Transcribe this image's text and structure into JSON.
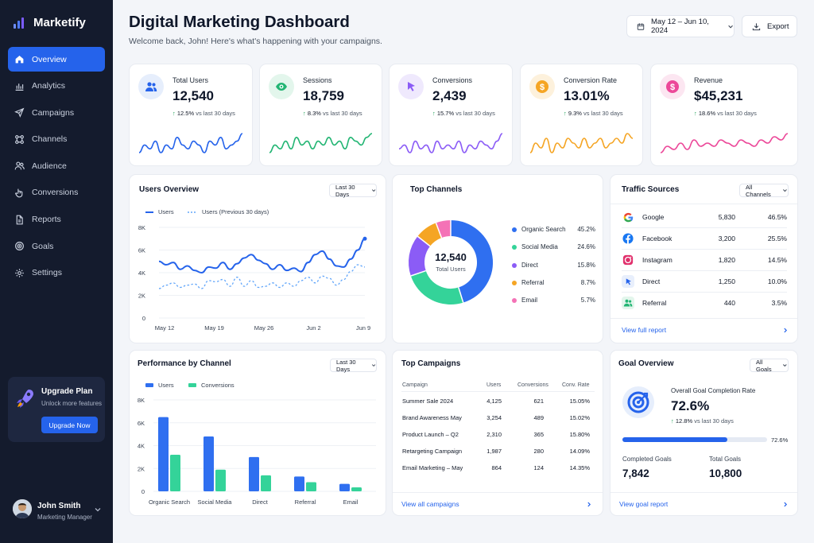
{
  "app": {
    "name": "Marketify",
    "accent": "#2563eb",
    "sidebar_bg": "#141b2d"
  },
  "sidebar": {
    "items": [
      {
        "label": "Overview",
        "icon": "home-icon",
        "active": true
      },
      {
        "label": "Analytics",
        "icon": "bar-chart-icon"
      },
      {
        "label": "Campaigns",
        "icon": "send-icon"
      },
      {
        "label": "Channels",
        "icon": "channels-icon"
      },
      {
        "label": "Audience",
        "icon": "users-icon"
      },
      {
        "label": "Conversions",
        "icon": "pointer-icon"
      },
      {
        "label": "Reports",
        "icon": "document-icon"
      },
      {
        "label": "Goals",
        "icon": "target-icon"
      },
      {
        "label": "Settings",
        "icon": "gear-icon"
      }
    ],
    "upgrade": {
      "title": "Upgrade Plan",
      "subtitle": "Unlock more features",
      "button": "Upgrade Now"
    },
    "user": {
      "name": "John Smith",
      "role": "Marketing Manager"
    }
  },
  "header": {
    "title": "Digital Marketing Dashboard",
    "subtitle": "Welcome back, John! Here's what's happening with your campaigns.",
    "date_range": "May 12 – Jun 10, 2024",
    "export_label": "Export"
  },
  "kpis": [
    {
      "label": "Total Users",
      "value": "12,540",
      "delta": "12.5%",
      "delta_suffix": "vs last 30 days",
      "icon": "users-icon",
      "color": "#2563eb",
      "bg": "#e6eefc"
    },
    {
      "label": "Sessions",
      "value": "18,759",
      "delta": "8.3%",
      "delta_suffix": "vs last 30 days",
      "icon": "eye-icon",
      "color": "#22b573",
      "bg": "#e3f6ec"
    },
    {
      "label": "Conversions",
      "value": "2,439",
      "delta": "15.7%",
      "delta_suffix": "vs last 30 days",
      "icon": "pointer-icon",
      "color": "#8b5cf6",
      "bg": "#efe9fd"
    },
    {
      "label": "Conversion Rate",
      "value": "13.01%",
      "delta": "9.3%",
      "delta_suffix": "vs last 30 days",
      "icon": "dollar-icon",
      "color": "#f5a524",
      "bg": "#fdf1dc"
    },
    {
      "label": "Revenue",
      "value": "$45,231",
      "delta": "18.6%",
      "delta_suffix": "vs last 30 days",
      "icon": "dollar-icon",
      "color": "#ec4899",
      "bg": "#fce6f1"
    }
  ],
  "users_overview": {
    "title": "Users Overview",
    "filter": "Last 30 Days",
    "legend": [
      "Users",
      "Users (Previous 30 days)"
    ]
  },
  "top_channels": {
    "title": "Top Channels",
    "center_value": "12,540",
    "center_label": "Total Users"
  },
  "traffic_sources": {
    "title": "Traffic Sources",
    "filter": "All Channels",
    "rows": [
      {
        "name": "Google",
        "users": "5,830",
        "pct": "46.5%",
        "icon": "google-icon"
      },
      {
        "name": "Facebook",
        "users": "3,200",
        "pct": "25.5%",
        "icon": "facebook-icon"
      },
      {
        "name": "Instagram",
        "users": "1,820",
        "pct": "14.5%",
        "icon": "instagram-icon"
      },
      {
        "name": "Direct",
        "users": "1,250",
        "pct": "10.0%",
        "icon": "pointer-icon"
      },
      {
        "name": "Referral",
        "users": "440",
        "pct": "3.5%",
        "icon": "users-icon"
      }
    ],
    "link": "View full report"
  },
  "performance": {
    "title": "Performance by Channel",
    "filter": "Last 30 Days",
    "legend": [
      "Users",
      "Conversions"
    ]
  },
  "top_campaigns": {
    "title": "Top Campaigns",
    "headers": [
      "Campaign",
      "Users",
      "Conversions",
      "Conv. Rate"
    ],
    "rows": [
      [
        "Summer Sale 2024",
        "4,125",
        "621",
        "15.05%"
      ],
      [
        "Brand Awareness May",
        "3,254",
        "489",
        "15.02%"
      ],
      [
        "Product Launch – Q2",
        "2,310",
        "365",
        "15.80%"
      ],
      [
        "Retargeting Campaign",
        "1,987",
        "280",
        "14.09%"
      ],
      [
        "Email Marketing – May",
        "864",
        "124",
        "14.35%"
      ]
    ],
    "link": "View all campaigns"
  },
  "goal_overview": {
    "title": "Goal Overview",
    "filter": "All Goals",
    "completion_label": "Overall Goal Completion Rate",
    "completion_value": "72.6%",
    "completion_fraction": 0.726,
    "delta": "12.8%",
    "delta_suffix": "vs last 30 days",
    "bar_label": "72.6%",
    "completed_label": "Completed Goals",
    "completed_value": "7,842",
    "total_label": "Total Goals",
    "total_value": "10,800",
    "link": "View goal report"
  },
  "chart_data": [
    {
      "type": "line",
      "title": "Users Overview",
      "x_ticks": [
        "May 12",
        "May 19",
        "May 26",
        "Jun 2",
        "Jun 9"
      ],
      "y_ticks": [
        "0",
        "2K",
        "4K",
        "6K",
        "8K"
      ],
      "ylim": [
        0,
        8000
      ],
      "series": [
        {
          "name": "Users",
          "style": "solid",
          "color": "#2563eb",
          "values": [
            5000,
            4700,
            4900,
            4300,
            4600,
            4200,
            4000,
            4500,
            4400,
            4900,
            4300,
            4800,
            5300,
            5600,
            5100,
            4800,
            4300,
            4700,
            4200,
            4400,
            4100,
            4900,
            5600,
            5900,
            5200,
            4600,
            4500,
            5200,
            6000,
            7000
          ]
        },
        {
          "name": "Users (Previous 30 days)",
          "style": "dashed",
          "color": "#60a5fa",
          "values": [
            2600,
            2900,
            3100,
            2700,
            2900,
            3000,
            2600,
            3300,
            3200,
            3400,
            2800,
            3600,
            2800,
            3300,
            2700,
            2800,
            3100,
            2700,
            3100,
            2800,
            3300,
            3600,
            3100,
            3700,
            3500,
            2900,
            3400,
            4100,
            4700,
            4500
          ]
        }
      ]
    },
    {
      "type": "pie",
      "title": "Top Channels",
      "categories": [
        "Organic Search",
        "Social Media",
        "Direct",
        "Referral",
        "Email"
      ],
      "values": [
        45.2,
        24.6,
        15.8,
        8.7,
        5.7
      ],
      "labels": [
        "45.2%",
        "24.6%",
        "15.8%",
        "8.7%",
        "5.7%"
      ],
      "colors": [
        "#2f6ff0",
        "#34d399",
        "#8b5cf6",
        "#f5a524",
        "#f472b6"
      ]
    },
    {
      "type": "bar",
      "title": "Performance by Channel",
      "categories": [
        "Organic Search",
        "Social Media",
        "Direct",
        "Referral",
        "Email"
      ],
      "y_ticks": [
        "0",
        "2K",
        "4K",
        "6K",
        "8K"
      ],
      "ylim": [
        0,
        8000
      ],
      "series": [
        {
          "name": "Users",
          "color": "#2f6ff0",
          "values": [
            6500,
            4800,
            3000,
            1300,
            650
          ]
        },
        {
          "name": "Conversions",
          "color": "#34d399",
          "values": [
            3200,
            1900,
            1400,
            800,
            350
          ]
        }
      ]
    },
    {
      "type": "line",
      "title": "",
      "sparklines": [
        {
          "color": "#2563eb",
          "values": [
            3,
            5,
            4,
            6,
            3,
            5,
            4,
            7,
            5,
            4,
            6,
            5,
            3,
            6,
            5,
            7,
            4,
            5,
            6,
            8
          ]
        },
        {
          "color": "#22b573",
          "values": [
            3,
            5,
            4,
            6,
            4,
            7,
            5,
            6,
            4,
            6,
            5,
            7,
            5,
            6,
            4,
            7,
            6,
            5,
            7,
            8
          ]
        },
        {
          "color": "#8b5cf6",
          "values": [
            4,
            5,
            3,
            6,
            4,
            5,
            3,
            6,
            4,
            5,
            4,
            6,
            3,
            5,
            4,
            6,
            5,
            4,
            6,
            8
          ]
        },
        {
          "color": "#f5a524",
          "values": [
            3,
            5,
            4,
            6,
            3,
            5,
            4,
            6,
            5,
            4,
            6,
            4,
            5,
            6,
            4,
            5,
            6,
            5,
            7,
            6
          ]
        },
        {
          "color": "#ec4899",
          "values": [
            2,
            4,
            3,
            5,
            3,
            6,
            4,
            5,
            4,
            6,
            5,
            4,
            6,
            5,
            4,
            6,
            5,
            7,
            6,
            8
          ]
        }
      ]
    }
  ]
}
